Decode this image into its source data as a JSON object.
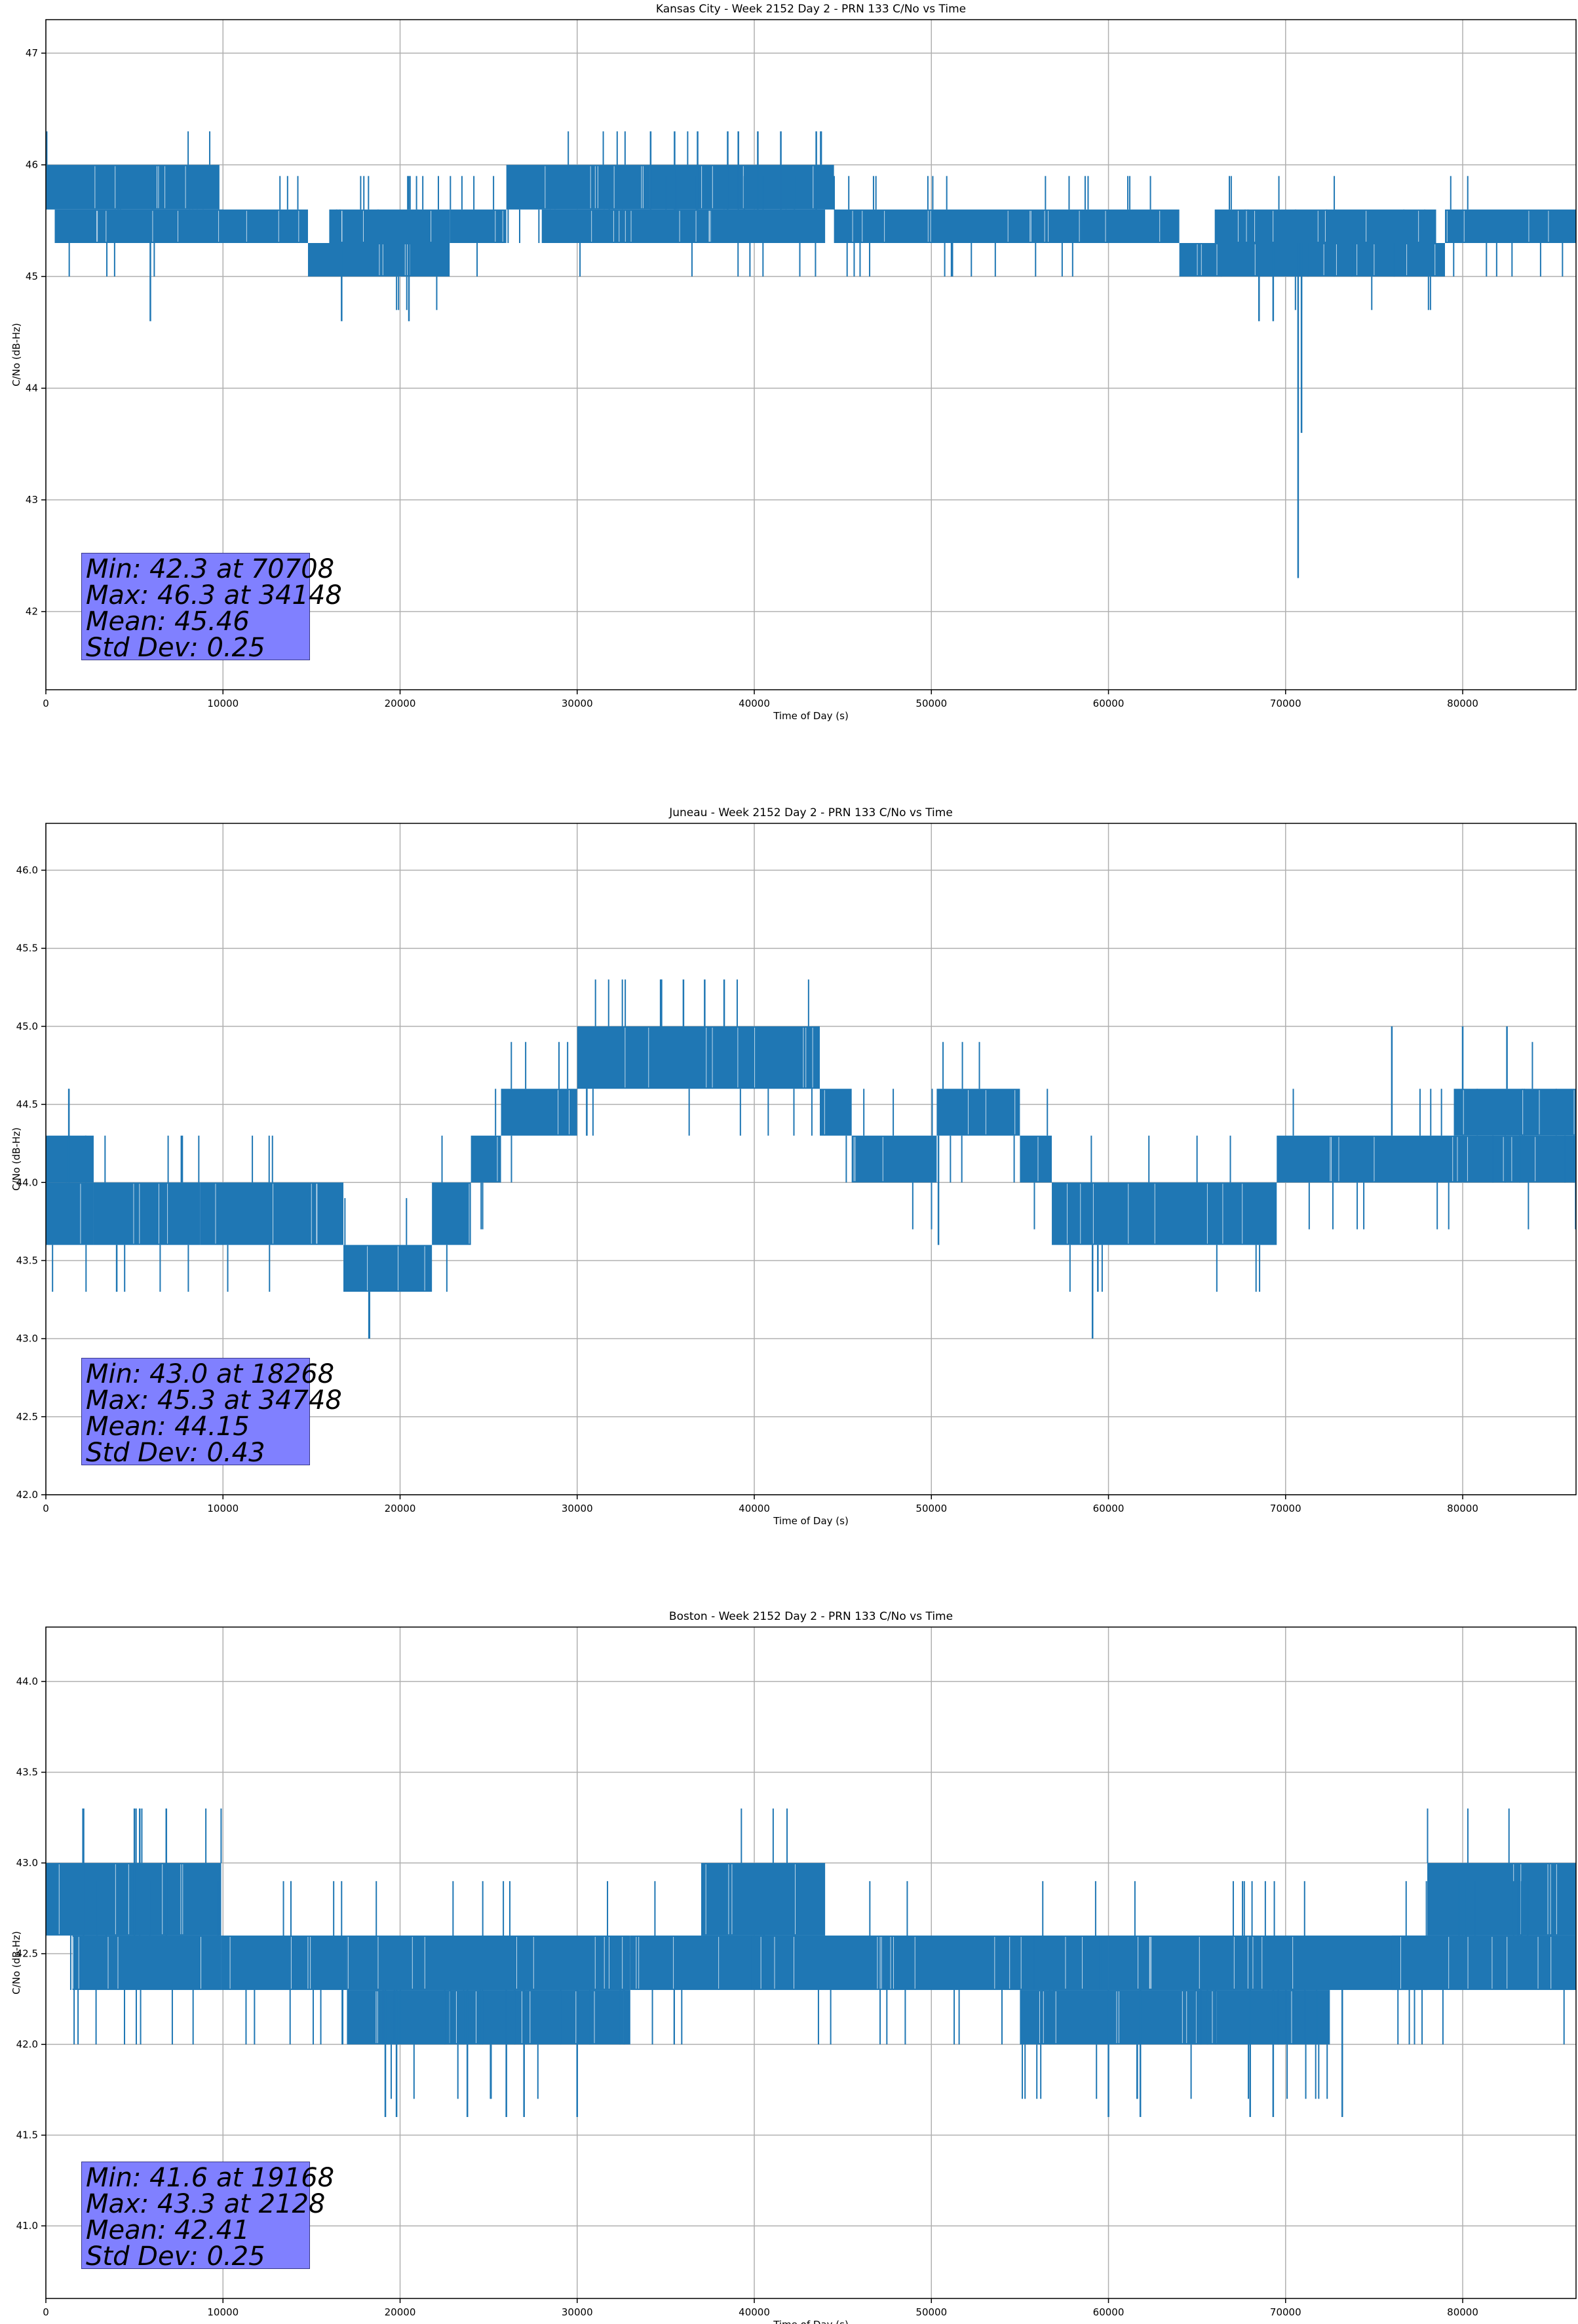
{
  "colors": {
    "series": "#1f77b4",
    "grid": "#b0b0b0",
    "stats_bg": "#8080ff"
  },
  "chart_data": [
    {
      "type": "line",
      "title": "Kansas City - Week 2152 Day 2 - PRN 133 C/No vs Time",
      "xlabel": "Time of Day (s)",
      "ylabel": "C/No (dB-Hz)",
      "xlim": [
        0,
        86400
      ],
      "ylim": [
        41.3,
        47.3
      ],
      "xticks": [
        0,
        10000,
        20000,
        30000,
        40000,
        50000,
        60000,
        70000,
        80000
      ],
      "yticks": [
        42,
        43,
        44,
        45,
        46,
        47
      ],
      "ytick_labels": [
        "42",
        "43",
        "44",
        "45",
        "46",
        "47"
      ],
      "grid": true,
      "stats": [
        "Min: 42.3 at 70708",
        "Max: 46.3 at 34148",
        "Mean: 45.46",
        "Std Dev: 0.25"
      ],
      "series": [
        {
          "bands": [
            {
              "x": [
                0,
                9800
              ],
              "y": [
                45.6,
                46.0
              ]
            },
            {
              "x": [
                500,
                10000
              ],
              "y": [
                45.3,
                45.6
              ]
            },
            {
              "x": [
                9800,
                14800
              ],
              "y": [
                45.3,
                45.6
              ]
            },
            {
              "x": [
                14800,
                22800
              ],
              "y": [
                45.0,
                45.3
              ]
            },
            {
              "x": [
                16000,
                22800
              ],
              "y": [
                45.3,
                45.6
              ]
            },
            {
              "x": [
                22800,
                26000
              ],
              "y": [
                45.3,
                45.6
              ]
            },
            {
              "x": [
                26000,
                44500
              ],
              "y": [
                45.6,
                46.0
              ]
            },
            {
              "x": [
                28000,
                44000
              ],
              "y": [
                45.3,
                45.6
              ]
            },
            {
              "x": [
                44500,
                64000
              ],
              "y": [
                45.3,
                45.6
              ]
            },
            {
              "x": [
                64000,
                79000
              ],
              "y": [
                45.0,
                45.3
              ]
            },
            {
              "x": [
                66000,
                78500
              ],
              "y": [
                45.3,
                45.6
              ]
            },
            {
              "x": [
                79000,
                86400
              ],
              "y": [
                45.3,
                45.6
              ]
            }
          ],
          "spikes": [
            {
              "x": 5900,
              "y": 44.6
            },
            {
              "x": 16700,
              "y": 44.6
            },
            {
              "x": 20500,
              "y": 44.6
            },
            {
              "x": 34148,
              "y": 46.3
            },
            {
              "x": 35500,
              "y": 46.3
            },
            {
              "x": 36800,
              "y": 46.3
            },
            {
              "x": 38500,
              "y": 46.3
            },
            {
              "x": 39100,
              "y": 46.3
            },
            {
              "x": 40200,
              "y": 46.3
            },
            {
              "x": 41500,
              "y": 46.3
            },
            {
              "x": 43500,
              "y": 46.3
            },
            {
              "x": 68500,
              "y": 44.6
            },
            {
              "x": 69300,
              "y": 44.6
            },
            {
              "x": 70708,
              "y": 42.3
            },
            {
              "x": 70900,
              "y": 43.6
            }
          ]
        }
      ]
    },
    {
      "type": "line",
      "title": "Juneau - Week 2152 Day 2 - PRN 133 C/No vs Time",
      "xlabel": "Time of Day (s)",
      "ylabel": "C/No (dB-Hz)",
      "xlim": [
        0,
        86400
      ],
      "ylim": [
        42.0,
        46.3
      ],
      "xticks": [
        0,
        10000,
        20000,
        30000,
        40000,
        50000,
        60000,
        70000,
        80000
      ],
      "yticks": [
        42.0,
        42.5,
        43.0,
        43.5,
        44.0,
        44.5,
        45.0,
        45.5,
        46.0
      ],
      "ytick_labels": [
        "42.0",
        "42.5",
        "43.0",
        "43.5",
        "44.0",
        "44.5",
        "45.0",
        "45.5",
        "46.0"
      ],
      "grid": true,
      "stats": [
        "Min: 43.0 at 18268",
        "Max: 45.3 at 34748",
        "Mean: 44.15",
        "Std Dev: 0.43"
      ],
      "series": [
        {
          "bands": [
            {
              "x": [
                0,
                2700
              ],
              "y": [
                44.0,
                44.3
              ]
            },
            {
              "x": [
                0,
                2700
              ],
              "y": [
                43.6,
                44.0
              ]
            },
            {
              "x": [
                2700,
                8700
              ],
              "y": [
                43.6,
                44.0
              ]
            },
            {
              "x": [
                8700,
                16800
              ],
              "y": [
                43.6,
                44.0
              ]
            },
            {
              "x": [
                16800,
                21800
              ],
              "y": [
                43.3,
                43.6
              ]
            },
            {
              "x": [
                21800,
                24000
              ],
              "y": [
                43.6,
                44.0
              ]
            },
            {
              "x": [
                24000,
                25700
              ],
              "y": [
                44.0,
                44.3
              ]
            },
            {
              "x": [
                25700,
                30000
              ],
              "y": [
                44.3,
                44.6
              ]
            },
            {
              "x": [
                30000,
                43700
              ],
              "y": [
                44.6,
                45.0
              ]
            },
            {
              "x": [
                43700,
                45500
              ],
              "y": [
                44.3,
                44.6
              ]
            },
            {
              "x": [
                45500,
                50300
              ],
              "y": [
                44.0,
                44.3
              ]
            },
            {
              "x": [
                50300,
                55000
              ],
              "y": [
                44.3,
                44.6
              ]
            },
            {
              "x": [
                55000,
                56800
              ],
              "y": [
                44.0,
                44.3
              ]
            },
            {
              "x": [
                56800,
                69500
              ],
              "y": [
                43.6,
                44.0
              ]
            },
            {
              "x": [
                69500,
                75000
              ],
              "y": [
                44.0,
                44.3
              ]
            },
            {
              "x": [
                75000,
                86400
              ],
              "y": [
                44.0,
                44.3
              ]
            },
            {
              "x": [
                79500,
                86400
              ],
              "y": [
                44.3,
                44.6
              ]
            }
          ],
          "spikes": [
            {
              "x": 1300,
              "y": 44.6
            },
            {
              "x": 4000,
              "y": 43.3
            },
            {
              "x": 18268,
              "y": 43.0
            },
            {
              "x": 34748,
              "y": 45.3
            },
            {
              "x": 36000,
              "y": 45.3
            },
            {
              "x": 37200,
              "y": 45.3
            },
            {
              "x": 38300,
              "y": 45.3
            },
            {
              "x": 50400,
              "y": 43.6
            },
            {
              "x": 59100,
              "y": 43.0
            },
            {
              "x": 59400,
              "y": 43.3
            },
            {
              "x": 76000,
              "y": 45.0
            },
            {
              "x": 80000,
              "y": 45.0
            },
            {
              "x": 82500,
              "y": 45.0
            }
          ]
        }
      ]
    },
    {
      "type": "line",
      "title": "Boston - Week 2152 Day 2 - PRN 133 C/No vs Time",
      "xlabel": "Time of Day (s)",
      "ylabel": "C/No (dB-Hz)",
      "xlim": [
        0,
        86400
      ],
      "ylim": [
        40.6,
        44.3
      ],
      "xticks": [
        0,
        10000,
        20000,
        30000,
        40000,
        50000,
        60000,
        70000,
        80000
      ],
      "yticks": [
        41.0,
        41.5,
        42.0,
        42.5,
        43.0,
        43.5,
        44.0
      ],
      "ytick_labels": [
        "41.0",
        "41.5",
        "42.0",
        "42.5",
        "43.0",
        "43.5",
        "44.0"
      ],
      "grid": true,
      "stats": [
        "Min: 41.6 at 19168",
        "Max: 43.3 at 2128",
        "Mean: 42.41",
        "Std Dev: 0.25"
      ],
      "series": [
        {
          "bands": [
            {
              "x": [
                0,
                9900
              ],
              "y": [
                42.6,
                43.0
              ]
            },
            {
              "x": [
                1500,
                9900
              ],
              "y": [
                42.3,
                42.6
              ]
            },
            {
              "x": [
                9900,
                17000
              ],
              "y": [
                42.3,
                42.6
              ]
            },
            {
              "x": [
                17000,
                33000
              ],
              "y": [
                42.0,
                42.3
              ]
            },
            {
              "x": [
                17000,
                33000
              ],
              "y": [
                42.3,
                42.6
              ]
            },
            {
              "x": [
                33000,
                60000
              ],
              "y": [
                42.3,
                42.6
              ]
            },
            {
              "x": [
                37000,
                44000
              ],
              "y": [
                42.6,
                43.0
              ]
            },
            {
              "x": [
                55000,
                60000
              ],
              "y": [
                42.0,
                42.3
              ]
            },
            {
              "x": [
                60000,
                72500
              ],
              "y": [
                42.0,
                42.3
              ]
            },
            {
              "x": [
                60000,
                78000
              ],
              "y": [
                42.3,
                42.6
              ]
            },
            {
              "x": [
                78000,
                86400
              ],
              "y": [
                42.6,
                43.0
              ]
            },
            {
              "x": [
                76000,
                86400
              ],
              "y": [
                42.3,
                42.6
              ]
            }
          ],
          "spikes": [
            {
              "x": 2128,
              "y": 43.3
            },
            {
              "x": 5000,
              "y": 43.3
            },
            {
              "x": 5300,
              "y": 43.3
            },
            {
              "x": 6800,
              "y": 43.3
            },
            {
              "x": 19168,
              "y": 41.6
            },
            {
              "x": 19800,
              "y": 41.6
            },
            {
              "x": 23800,
              "y": 41.6
            },
            {
              "x": 26000,
              "y": 41.6
            },
            {
              "x": 27000,
              "y": 41.6
            },
            {
              "x": 30000,
              "y": 41.6
            },
            {
              "x": 60000,
              "y": 41.6
            },
            {
              "x": 61800,
              "y": 41.6
            },
            {
              "x": 68000,
              "y": 41.6
            },
            {
              "x": 69300,
              "y": 41.6
            },
            {
              "x": 73200,
              "y": 41.6
            }
          ]
        }
      ]
    }
  ]
}
